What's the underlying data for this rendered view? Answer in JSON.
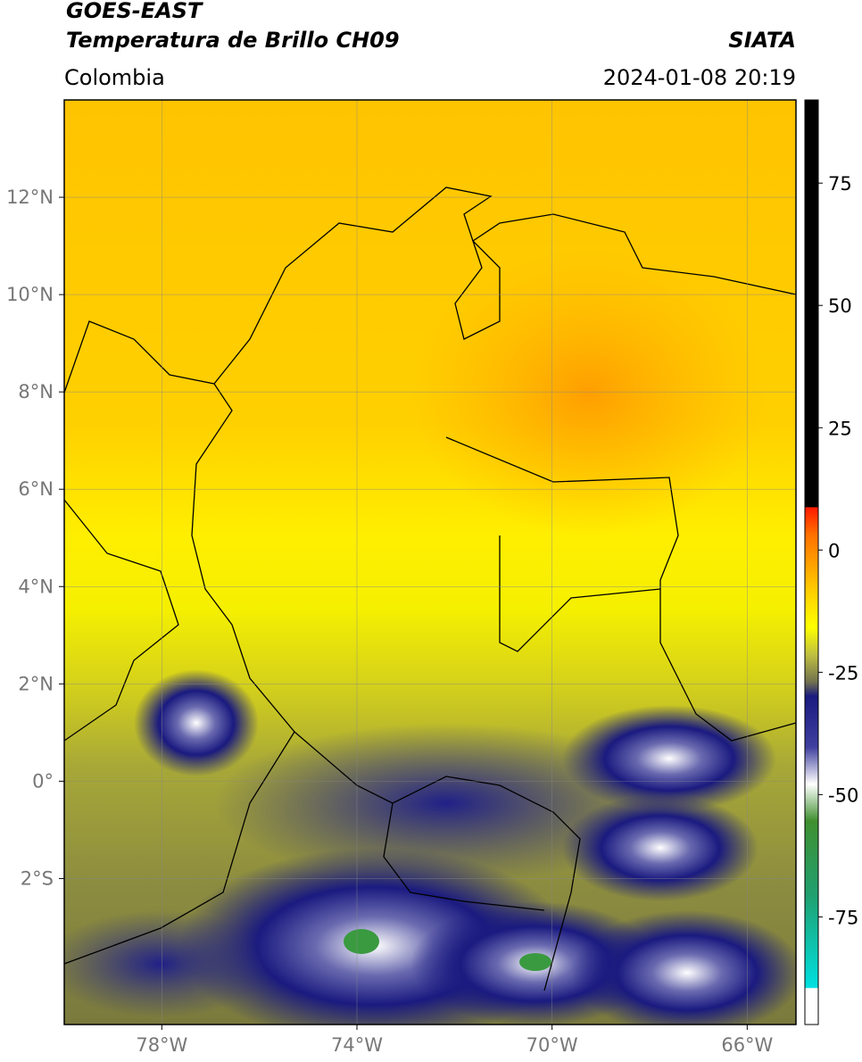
{
  "header": {
    "title": "GOES-EAST",
    "subtitle": "Temperatura de Brillo CH09",
    "source": "SIATA",
    "region": "Colombia",
    "datetime": "2024-01-08 20:19"
  },
  "map": {
    "xlim": [
      -80,
      -65
    ],
    "ylim": [
      -5,
      14
    ],
    "xticks": [
      {
        "value": -78,
        "label": "78°W"
      },
      {
        "value": -74,
        "label": "74°W"
      },
      {
        "value": -70,
        "label": "70°W"
      },
      {
        "value": -66,
        "label": "66°W"
      }
    ],
    "yticks": [
      {
        "value": 12,
        "label": "12°N"
      },
      {
        "value": 10,
        "label": "10°N"
      },
      {
        "value": 8,
        "label": "8°N"
      },
      {
        "value": 6,
        "label": "6°N"
      },
      {
        "value": 4,
        "label": "4°N"
      },
      {
        "value": 2,
        "label": "2°N"
      },
      {
        "value": 0,
        "label": "0°"
      },
      {
        "value": -2,
        "label": "2°S"
      }
    ],
    "grid": true
  },
  "colorbar": {
    "lim": [
      -97,
      92
    ],
    "ticks": [
      75,
      50,
      25,
      0,
      -25,
      -50,
      -75
    ]
  }
}
